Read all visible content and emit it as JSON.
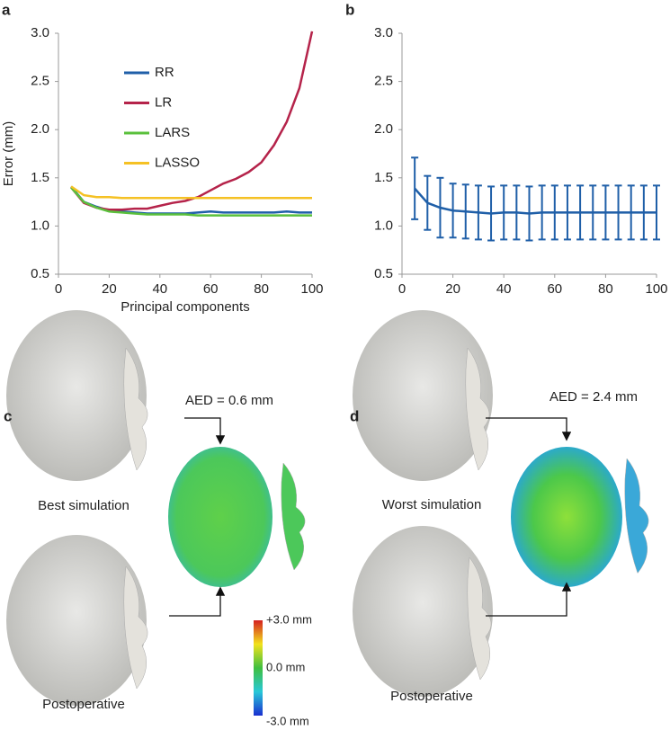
{
  "chart_data": [
    {
      "type": "line",
      "label": "a",
      "xlabel": "Principal components",
      "ylabel": "Error (mm)",
      "x": [
        5,
        10,
        15,
        20,
        25,
        30,
        35,
        40,
        45,
        50,
        55,
        60,
        65,
        70,
        75,
        80,
        85,
        90,
        95,
        100
      ],
      "xlim": [
        0,
        100
      ],
      "xticks": [
        0,
        20,
        40,
        60,
        80,
        100
      ],
      "ylim": [
        0.5,
        3.0
      ],
      "yticks": [
        0.5,
        {
          "value": 1,
          "label": "1.0"
        },
        1.5,
        {
          "value": 2,
          "label": "2.0"
        },
        2.5,
        {
          "value": 3,
          "label": "3.0"
        }
      ],
      "series": [
        {
          "name": "RR",
          "color": "#1f5fa8",
          "values": [
            1.41,
            1.25,
            1.2,
            1.16,
            1.15,
            1.14,
            1.13,
            1.13,
            1.13,
            1.13,
            1.14,
            1.15,
            1.14,
            1.14,
            1.14,
            1.14,
            1.14,
            1.15,
            1.14,
            1.14
          ]
        },
        {
          "name": "LR",
          "color": "#b5234a",
          "values": [
            1.4,
            1.24,
            1.19,
            1.17,
            1.17,
            1.18,
            1.18,
            1.21,
            1.24,
            1.26,
            1.3,
            1.37,
            1.44,
            1.49,
            1.56,
            1.66,
            1.84,
            2.08,
            2.43,
            3.02
          ]
        },
        {
          "name": "LARS",
          "color": "#5ac03c",
          "values": [
            1.4,
            1.25,
            1.19,
            1.15,
            1.14,
            1.13,
            1.12,
            1.12,
            1.12,
            1.12,
            1.11,
            1.11,
            1.11,
            1.11,
            1.11,
            1.11,
            1.11,
            1.11,
            1.11,
            1.11
          ]
        },
        {
          "name": "LASSO",
          "color": "#f5c124",
          "values": [
            1.41,
            1.32,
            1.3,
            1.3,
            1.29,
            1.29,
            1.29,
            1.29,
            1.29,
            1.29,
            1.29,
            1.29,
            1.29,
            1.29,
            1.29,
            1.29,
            1.29,
            1.29,
            1.29,
            1.29
          ]
        }
      ]
    },
    {
      "type": "errorbar",
      "label": "b",
      "x": [
        5,
        10,
        15,
        20,
        25,
        30,
        35,
        40,
        45,
        50,
        55,
        60,
        65,
        70,
        75,
        80,
        85,
        90,
        95,
        100
      ],
      "xlim": [
        0,
        100
      ],
      "xticks": [
        0,
        20,
        40,
        60,
        80,
        100
      ],
      "ylim": [
        0.5,
        3.0
      ],
      "yticks": [
        0.5,
        {
          "value": 1,
          "label": "1.0"
        },
        1.5,
        {
          "value": 2,
          "label": "2.0"
        },
        2.5,
        {
          "value": 3,
          "label": "3.0"
        }
      ],
      "series": [
        {
          "color": "#1f5fa8",
          "values": [
            1.39,
            1.24,
            1.19,
            1.16,
            1.15,
            1.14,
            1.13,
            1.14,
            1.14,
            1.13,
            1.14,
            1.14,
            1.14,
            1.14,
            1.14,
            1.14,
            1.14,
            1.14,
            1.14,
            1.14
          ],
          "errors": [
            0.32,
            0.28,
            0.31,
            0.28,
            0.28,
            0.28,
            0.28,
            0.28,
            0.28,
            0.28,
            0.28,
            0.28,
            0.28,
            0.28,
            0.28,
            0.28,
            0.28,
            0.28,
            0.28,
            0.28
          ]
        }
      ]
    }
  ],
  "panels": {
    "c": {
      "label": "c",
      "aed": "AED = 0.6 mm",
      "top": "Best simulation",
      "bottom": "Postoperative"
    },
    "d": {
      "label": "d",
      "aed": "AED = 2.4 mm",
      "top": "Worst simulation",
      "bottom": "Postoperative"
    },
    "colorbar": [
      "+3.0 mm",
      "0.0 mm",
      "-3.0 mm"
    ]
  }
}
